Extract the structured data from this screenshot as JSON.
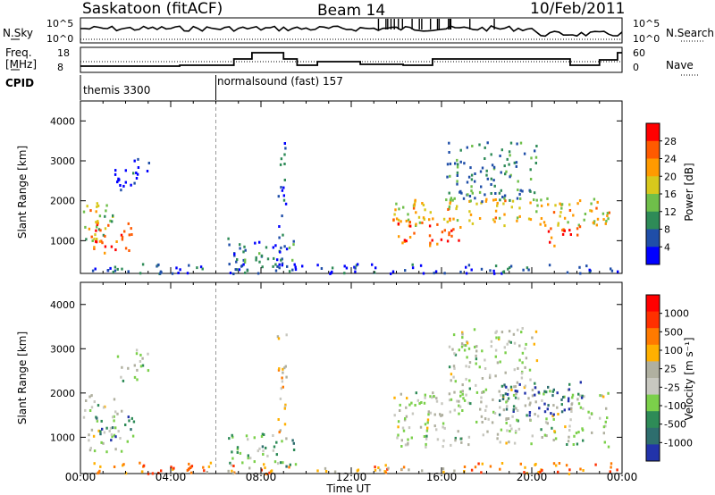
{
  "header": {
    "station": "Saskatoon (fitACF)",
    "beam": "Beam 14",
    "date": "10/Feb/2011"
  },
  "top_panels": {
    "nsky_label": "N.Sky",
    "nsky_ticks": [
      "10^5",
      "10^0"
    ],
    "nsearch_label": "N.Search",
    "nsearch_ticks": [
      "10^5",
      "10^0"
    ],
    "freq_label_1": "Freq.",
    "freq_label_2": "[MHz]",
    "freq_ticks": [
      "18",
      "8"
    ],
    "nave_label": "Nave",
    "nave_ticks": [
      "60",
      "0"
    ],
    "cpid_label": "CPID",
    "cpid_segments": [
      {
        "name": "themis 3300",
        "start_hour": 0
      },
      {
        "name": "normalsound (fast) 157",
        "start_hour": 6
      }
    ]
  },
  "colors": {
    "power_scale": [
      "#0000ff",
      "#1f4ea8",
      "#2e8b57",
      "#6fbf4a",
      "#d8c81c",
      "#ff9a00",
      "#ff5a00",
      "#ff0000"
    ],
    "velocity_scale": [
      "#2233aa",
      "#2e6e6e",
      "#2e8b57",
      "#7bd04a",
      "#c8c8c0",
      "#b0b0a0",
      "#ffb000",
      "#ff7a00",
      "#ff3000",
      "#ff0000"
    ]
  },
  "chart_data": [
    {
      "type": "heatmap",
      "name": "power",
      "title": "Beam 14",
      "ylabel": "Slant Range [km]",
      "xlabel": "Time UT",
      "x_ticks": [
        "00:00",
        "04:00",
        "08:00",
        "12:00",
        "16:00",
        "20:00",
        "00:00"
      ],
      "xlim_hours": [
        0,
        24
      ],
      "y_ticks": [
        1000,
        2000,
        3000,
        4000
      ],
      "ylim": [
        180,
        4500
      ],
      "colorbar_label": "Power [dB]",
      "colorbar_ticks": [
        4,
        8,
        12,
        16,
        20,
        24,
        28
      ],
      "regions": [
        {
          "t0": 0.1,
          "t1": 1.4,
          "r0": 1000,
          "r1": 2000,
          "level": 0.45
        },
        {
          "t0": 0.4,
          "t1": 2.3,
          "r0": 700,
          "r1": 1500,
          "level": 0.85
        },
        {
          "t0": 0.2,
          "t1": 0.8,
          "r0": 1300,
          "r1": 1800,
          "level": 0.75
        },
        {
          "t0": 1.5,
          "t1": 3.0,
          "r0": 2300,
          "r1": 3100,
          "level": 0.1
        },
        {
          "t0": 6.5,
          "t1": 9.5,
          "r0": 300,
          "r1": 1100,
          "level": 0.25
        },
        {
          "t0": 8.7,
          "t1": 9.1,
          "r0": 200,
          "r1": 3500,
          "level": 0.2
        },
        {
          "t0": 13.8,
          "t1": 23.5,
          "r0": 1400,
          "r1": 2100,
          "level": 0.6
        },
        {
          "t0": 14.0,
          "t1": 17.0,
          "r0": 900,
          "r1": 1600,
          "level": 0.8
        },
        {
          "t0": 16.2,
          "t1": 20.2,
          "r0": 2000,
          "r1": 3500,
          "level": 0.3
        },
        {
          "t0": 20.5,
          "t1": 22.2,
          "r0": 900,
          "r1": 1400,
          "level": 0.85
        },
        {
          "t0": 0.5,
          "t1": 23.8,
          "r0": 200,
          "r1": 450,
          "level": 0.15
        }
      ]
    },
    {
      "type": "heatmap",
      "name": "velocity",
      "ylabel": "Slant Range [km]",
      "xlabel": "Time UT",
      "x_ticks": [
        "00:00",
        "04:00",
        "08:00",
        "12:00",
        "16:00",
        "20:00",
        "00:00"
      ],
      "xlim_hours": [
        0,
        24
      ],
      "y_ticks": [
        1000,
        2000,
        3000,
        4000
      ],
      "ylim": [
        180,
        4500
      ],
      "colorbar_label": "Velocity [m s⁻¹]",
      "colorbar_ticks": [
        1000,
        500,
        100,
        25,
        -25,
        -100,
        -500,
        -1000
      ],
      "regions": [
        {
          "t0": 0.1,
          "t1": 1.8,
          "r0": 700,
          "r1": 2000,
          "level": 0.45
        },
        {
          "t0": 0.6,
          "t1": 2.4,
          "r0": 900,
          "r1": 1500,
          "level": 0.25
        },
        {
          "t0": 1.6,
          "t1": 3.0,
          "r0": 2300,
          "r1": 3000,
          "level": 0.45
        },
        {
          "t0": 6.5,
          "t1": 9.5,
          "r0": 300,
          "r1": 1100,
          "level": 0.3
        },
        {
          "t0": 8.7,
          "t1": 9.1,
          "r0": 200,
          "r1": 3500,
          "level": 0.6
        },
        {
          "t0": 13.8,
          "t1": 23.5,
          "r0": 800,
          "r1": 2100,
          "level": 0.45
        },
        {
          "t0": 16.2,
          "t1": 20.2,
          "r0": 2000,
          "r1": 3500,
          "level": 0.45
        },
        {
          "t0": 18.5,
          "t1": 22.2,
          "r0": 1500,
          "r1": 2300,
          "level": 0.1
        },
        {
          "t0": 0.5,
          "t1": 23.8,
          "r0": 200,
          "r1": 450,
          "level": 0.7
        }
      ]
    }
  ]
}
